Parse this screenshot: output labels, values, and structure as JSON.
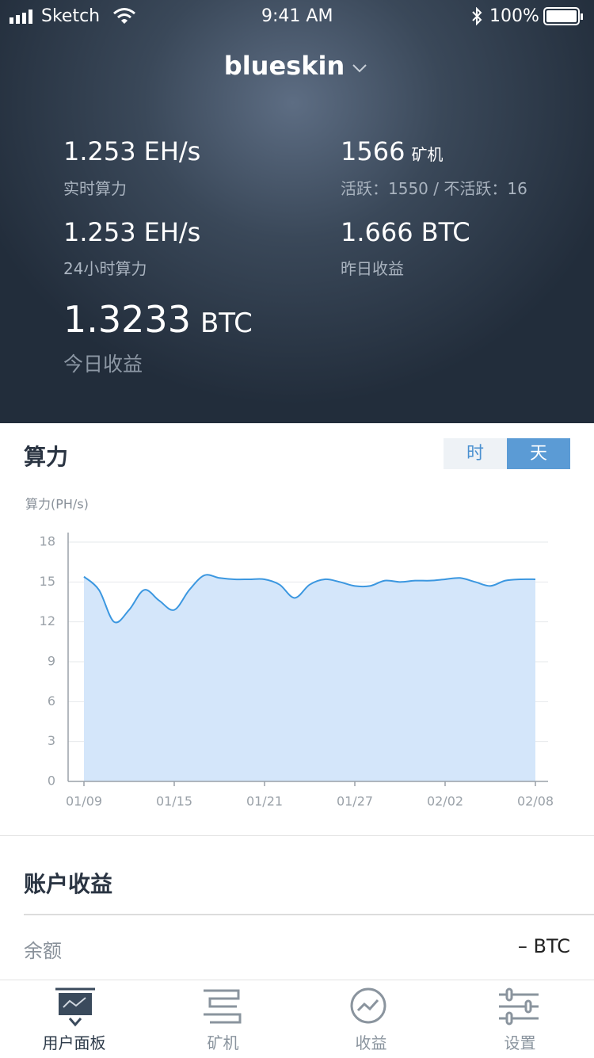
{
  "status_bar": {
    "carrier": "Sketch",
    "time": "9:41 AM",
    "battery": "100%"
  },
  "header": {
    "title": "blueskin",
    "stats": [
      {
        "value": "1.253",
        "unit": "EH/s",
        "label": "实时算力"
      },
      {
        "value": "1566",
        "unit": "矿机",
        "label": "活跃：1550 / 不活跃：16"
      },
      {
        "value": "1.253",
        "unit": "EH/s",
        "label": "24小时算力"
      },
      {
        "value": "1.666",
        "unit": "BTC",
        "label": "昨日收益"
      },
      {
        "value": "1.3233",
        "unit": "BTC",
        "label": "今日收益"
      }
    ]
  },
  "chart_section": {
    "title": "算力",
    "toggle": [
      "时",
      "天"
    ],
    "selected": 1
  },
  "chart_data": {
    "type": "area",
    "y_label": "算力(PH/s)",
    "categories": [
      "01/09",
      null,
      null,
      null,
      null,
      null,
      "01/15",
      null,
      null,
      null,
      null,
      null,
      "01/21",
      null,
      null,
      null,
      null,
      null,
      "01/27",
      null,
      null,
      null,
      null,
      null,
      "02/02",
      null,
      null,
      null,
      null,
      null,
      "02/08"
    ],
    "series": [
      {
        "color": "#3b97e0",
        "fill": "#d4e6fa",
        "values": [
          15.4,
          14.4,
          12.0,
          12.9,
          14.4,
          13.6,
          12.9,
          14.4,
          15.5,
          15.3,
          15.2,
          15.2,
          15.2,
          14.8,
          13.8,
          14.8,
          15.2,
          15.0,
          14.7,
          14.7,
          15.1,
          15.0,
          15.1,
          15.1,
          15.2,
          15.3,
          15.0,
          14.7,
          15.1,
          15.2,
          15.2
        ]
      }
    ],
    "ylim": [
      0,
      18
    ],
    "yticks": [
      0,
      3,
      6,
      9,
      12,
      15,
      18
    ],
    "grid": true
  },
  "account": {
    "title": "账户收益",
    "rows": [
      {
        "label": "余额",
        "value": "– BTC"
      }
    ]
  },
  "tabbar": {
    "tabs": [
      "用户面板",
      "矿机",
      "收益",
      "设置"
    ],
    "active": 0
  }
}
